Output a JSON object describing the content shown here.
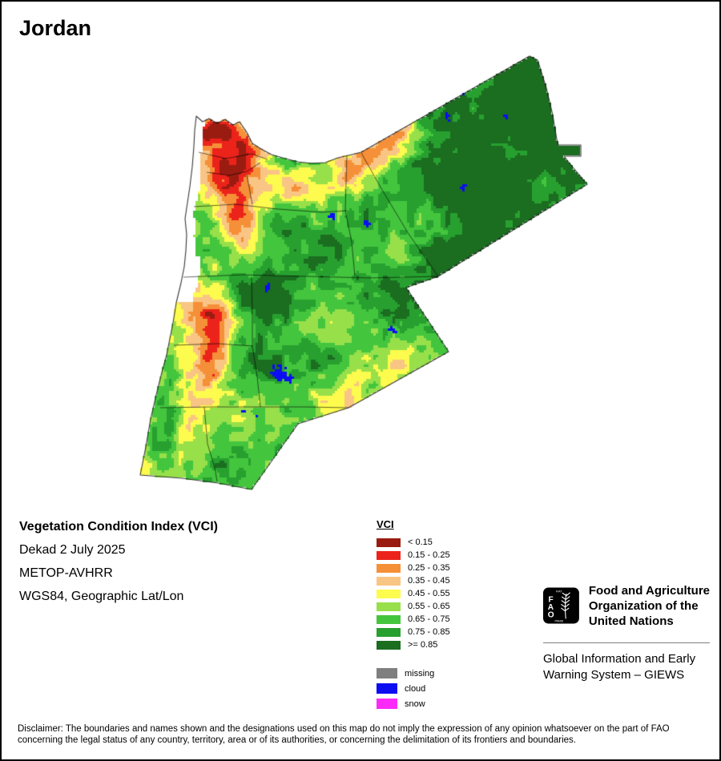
{
  "page": {
    "title": "Jordan"
  },
  "info": {
    "product": "Vegetation Condition Index (VCI)",
    "dekad": "Dekad 2 July 2025",
    "sensor": "METOP-AVHRR",
    "projection": "WGS84, Geographic Lat/Lon"
  },
  "legend": {
    "title": "VCI",
    "classes": [
      {
        "label": "< 0.15",
        "color": "#9a1c10"
      },
      {
        "label": "0.15 - 0.25",
        "color": "#ec231b"
      },
      {
        "label": "0.25 - 0.35",
        "color": "#f59038"
      },
      {
        "label": "0.35 - 0.45",
        "color": "#f9c584"
      },
      {
        "label": "0.45 - 0.55",
        "color": "#fdfb4d"
      },
      {
        "label": "0.55 - 0.65",
        "color": "#97e04a"
      },
      {
        "label": "0.65 - 0.75",
        "color": "#44c53e"
      },
      {
        "label": "0.75 - 0.85",
        "color": "#27a02f"
      },
      {
        "label": ">= 0.85",
        "color": "#1b6d20"
      }
    ],
    "flags": [
      {
        "label": "missing",
        "color": "#7f7f7f"
      },
      {
        "label": "cloud",
        "color": "#0d0df2"
      },
      {
        "label": "snow",
        "color": "#fb2af8"
      }
    ]
  },
  "fao": {
    "letters": [
      "F",
      "A",
      "O"
    ],
    "motto_top": "FIAT",
    "motto_bottom": "PANIS",
    "org_line1": "Food and Agriculture",
    "org_line2": "Organization of the",
    "org_line3": "United Nations",
    "giews_line1": "Global Information and Early",
    "giews_line2": "Warning System – GIEWS"
  },
  "disclaimer": "Disclaimer: The boundaries and names shown and the designations used on this map do not imply the expression of any opinion whatsoever on the part of FAO concerning the legal status of any country, territory, area or of its authorities, or concerning the delimitation of its frontiers and boundaries."
}
